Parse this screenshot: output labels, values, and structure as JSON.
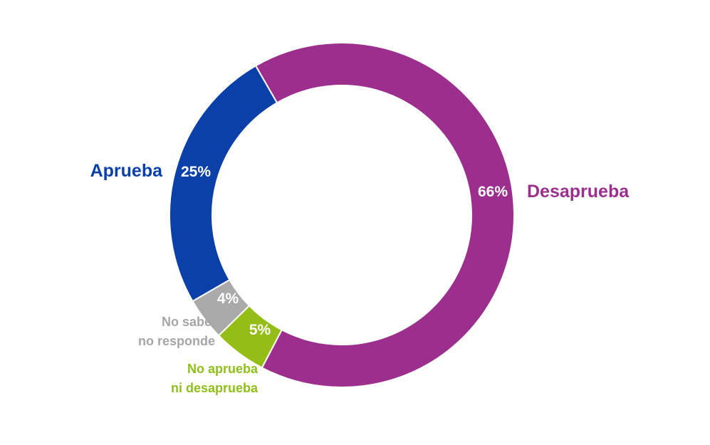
{
  "chart_data": {
    "type": "pie",
    "title": "",
    "slices": [
      {
        "label": "Desaprueba",
        "value": 66,
        "value_label": "66%",
        "color": "#9c2f8e"
      },
      {
        "label": "No aprueba ni desaprueba",
        "label_lines": [
          "No aprueba",
          "ni desaprueba"
        ],
        "value": 5,
        "value_label": "5%",
        "color": "#95bd17"
      },
      {
        "label": "No sabe, no responde",
        "label_lines": [
          "No sabe,",
          "no responde"
        ],
        "value": 4,
        "value_label": "4%",
        "color": "#aaaaaa"
      },
      {
        "label": "Aprueba",
        "value": 25,
        "value_label": "25%",
        "color": "#0b40a8"
      }
    ]
  }
}
